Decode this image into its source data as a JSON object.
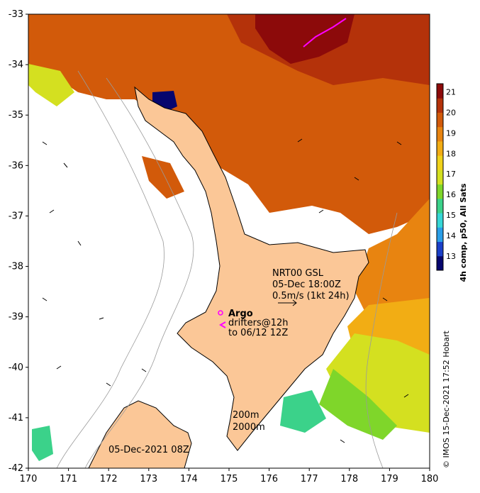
{
  "map": {
    "axes": {
      "lon_min": 170,
      "lon_max": 180,
      "lat_min": -42,
      "lat_max": -33,
      "x_ticks": [
        "170",
        "171",
        "172",
        "173",
        "174",
        "175",
        "176",
        "177",
        "178",
        "179",
        "180"
      ],
      "y_ticks": [
        "-33",
        "-34",
        "-35",
        "-36",
        "-37",
        "-38",
        "-39",
        "-40",
        "-41",
        "-42"
      ]
    },
    "colorbar": {
      "label": "4h comp, p50, All Sats",
      "ticks": [
        "21",
        "20",
        "19",
        "18",
        "17",
        "16",
        "15",
        "14",
        "13"
      ],
      "range": [
        12.3,
        21.4
      ],
      "colors": [
        "#06066e",
        "#1a3fc8",
        "#2a9ee8",
        "#36d6d6",
        "#3bd28a",
        "#7fd62a",
        "#d4e020",
        "#f0d21a",
        "#f2ad14",
        "#e88410",
        "#d25a0a",
        "#b4320a",
        "#8c0a0a"
      ]
    },
    "annotations": {
      "current_title": "NRT00 GSL",
      "current_time": "05-Dec 18:00Z",
      "current_speed": "0.5m/s (1kt 24h)",
      "argo": "Argo",
      "drifters_line1": "drifters@12h",
      "drifters_line2": "to 06/12 12Z",
      "isobath_200": "200m",
      "isobath_2000": "2000m",
      "sst_date": "05-Dec-2021 08Z",
      "credit": "© IMOS 15-Dec-2021 17:52 Hobart"
    },
    "colors": {
      "land": "#fbc797",
      "coast": "#000000",
      "contour": "#9a9a9a",
      "argo": "#ff00ff"
    }
  }
}
